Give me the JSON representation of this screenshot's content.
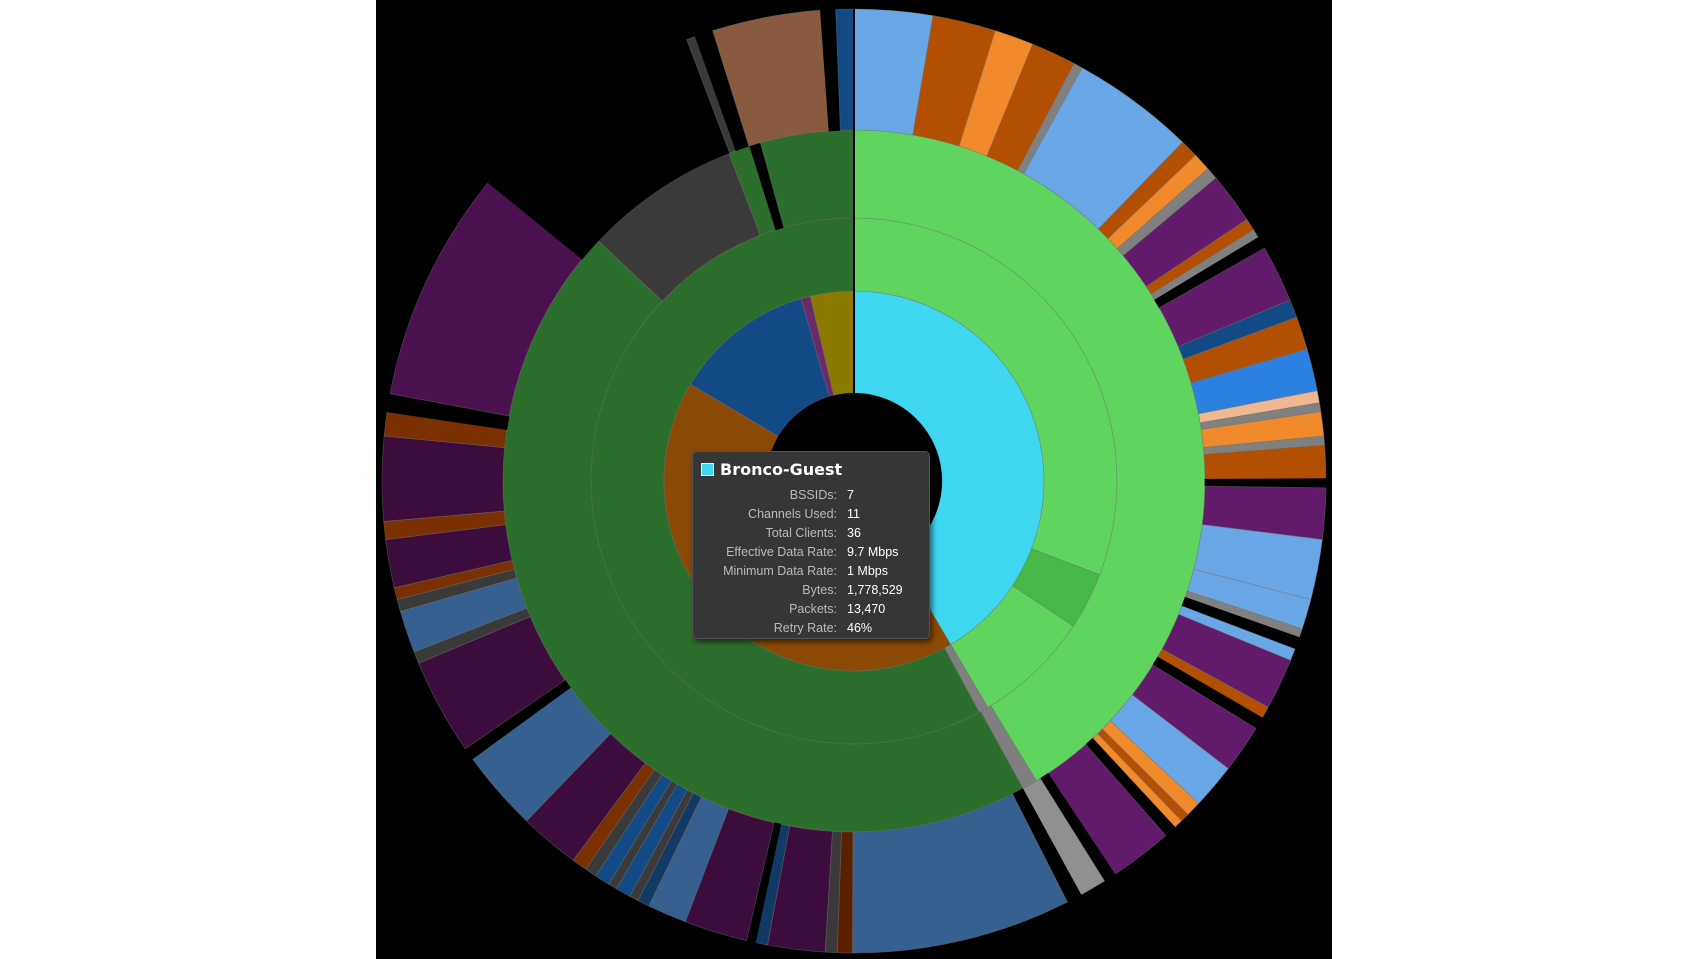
{
  "chart_data": {
    "type": "sunburst",
    "center_color": "#000000",
    "rings": [
      {
        "level": 1,
        "segments": [
          {
            "value": 41.5,
            "color": "#3fd7f0"
          },
          {
            "value": 42.0,
            "color": "#8b4a05"
          },
          {
            "value": 12.0,
            "color": "#124a86"
          },
          {
            "value": 0.8,
            "color": "#6a2a6a"
          },
          {
            "value": 3.7,
            "color": "#8a7a00"
          }
        ]
      },
      {
        "level": 2,
        "segments": [
          {
            "value": 30.8,
            "color": "#5fd45f"
          },
          {
            "value": 3.5,
            "color": "#47b847"
          },
          {
            "value": 7.2,
            "color": "#5fd45f"
          },
          {
            "value": 0.6,
            "color": "#7f7f7f"
          },
          {
            "value": 57.9,
            "color": "#2c6e2c"
          }
        ]
      },
      {
        "level": 3,
        "segments": [
          {
            "value": 41.3,
            "color": "#5fd45f"
          },
          {
            "value": 0.7,
            "color": "#7f7f7f"
          },
          {
            "value": 45.0,
            "color": "#2c6e2c"
          },
          {
            "value": 7.2,
            "color": "#3a3a3a"
          },
          {
            "value": 1.0,
            "color": "#2c6e2c"
          },
          {
            "value": 0.5,
            "color": "#000000"
          },
          {
            "value": 4.3,
            "color": "#2c6e2c"
          }
        ]
      },
      {
        "level": 4,
        "segments": [
          {
            "value": 2.6,
            "color": "#6aa7e6"
          },
          {
            "value": 2.1,
            "color": "#b34f00"
          },
          {
            "value": 1.3,
            "color": "#f08a2a"
          },
          {
            "value": 1.5,
            "color": "#b34f00"
          },
          {
            "value": 0.3,
            "color": "#808080"
          },
          {
            "value": 4.1,
            "color": "#6aa7e6"
          },
          {
            "value": 0.6,
            "color": "#b34f00"
          },
          {
            "value": 0.6,
            "color": "#f08a2a"
          },
          {
            "value": 0.4,
            "color": "#808080"
          },
          {
            "value": 1.7,
            "color": "#621a6a"
          },
          {
            "value": 0.4,
            "color": "#b34f00"
          },
          {
            "value": 0.3,
            "color": "#808080"
          },
          {
            "value": 0.4,
            "color": "#000000"
          },
          {
            "value": 1.9,
            "color": "#621a6a"
          },
          {
            "value": 0.6,
            "color": "#124a86"
          },
          {
            "value": 1.1,
            "color": "#b34f00"
          },
          {
            "value": 1.4,
            "color": "#2b80e0"
          },
          {
            "value": 0.4,
            "color": "#f0b890"
          },
          {
            "value": 0.3,
            "color": "#808080"
          },
          {
            "value": 0.8,
            "color": "#f08a2a"
          },
          {
            "value": 0.3,
            "color": "#808080"
          },
          {
            "value": 1.1,
            "color": "#b34f00"
          },
          {
            "value": 0.3,
            "color": "#000000"
          },
          {
            "value": 1.7,
            "color": "#621a6a"
          },
          {
            "value": 2.0,
            "color": "#6aa7e6"
          },
          {
            "value": 1.0,
            "color": "#6aa7e6"
          },
          {
            "value": 0.3,
            "color": "#808080"
          },
          {
            "value": 0.4,
            "color": "#000000"
          },
          {
            "value": 0.4,
            "color": "#6aa7e6"
          },
          {
            "value": 1.7,
            "color": "#621a6a"
          },
          {
            "value": 0.4,
            "color": "#b34f00"
          },
          {
            "value": 0.4,
            "color": "#000000"
          },
          {
            "value": 1.6,
            "color": "#621a6a"
          },
          {
            "value": 1.5,
            "color": "#6aa7e6"
          },
          {
            "value": 0.5,
            "color": "#f08a2a"
          },
          {
            "value": 0.3,
            "color": "#b34f00"
          },
          {
            "value": 0.3,
            "color": "#f08a2a"
          },
          {
            "value": 0.4,
            "color": "#000000"
          },
          {
            "value": 2.1,
            "color": "#621a6a"
          },
          {
            "value": 0.4,
            "color": "#000000"
          },
          {
            "value": 0.9,
            "color": "#909090"
          },
          {
            "value": 0.5,
            "color": "#000000"
          },
          {
            "value": 7.3,
            "color": "#35608f"
          },
          {
            "value": 0.5,
            "color": "#5a2000"
          },
          {
            "value": 0.4,
            "color": "#3a3a3a"
          },
          {
            "value": 1.9,
            "color": "#3c0c3c"
          },
          {
            "value": 0.4,
            "color": "#123a66"
          },
          {
            "value": 0.3,
            "color": "#000000"
          },
          {
            "value": 2.1,
            "color": "#3c0c3c"
          },
          {
            "value": 1.3,
            "color": "#35608f"
          },
          {
            "value": 0.4,
            "color": "#123a66"
          },
          {
            "value": 0.3,
            "color": "#3a3a3a"
          },
          {
            "value": 0.5,
            "color": "#124a86"
          },
          {
            "value": 0.3,
            "color": "#3a3a3a"
          },
          {
            "value": 0.5,
            "color": "#124a86"
          },
          {
            "value": 0.4,
            "color": "#3a3a3a"
          },
          {
            "value": 0.5,
            "color": "#7a3000"
          },
          {
            "value": 2.0,
            "color": "#3c0c3c"
          },
          {
            "value": 2.7,
            "color": "#35608f"
          },
          {
            "value": 0.4,
            "color": "#000000"
          },
          {
            "value": 3.2,
            "color": "#3c0c3c"
          },
          {
            "value": 0.4,
            "color": "#3a3a3a"
          },
          {
            "value": 1.4,
            "color": "#35608f"
          },
          {
            "value": 0.4,
            "color": "#3a3a3a"
          },
          {
            "value": 0.4,
            "color": "#7a3000"
          },
          {
            "value": 1.6,
            "color": "#3c0c3c"
          },
          {
            "value": 0.6,
            "color": "#7a3000"
          },
          {
            "value": 2.8,
            "color": "#3c0c3c"
          },
          {
            "value": 0.8,
            "color": "#7a3000"
          },
          {
            "value": 0.6,
            "color": "#000000"
          },
          {
            "value": 7.7,
            "color": "#4a1050"
          },
          {
            "value": 0.3,
            "color": "#000000"
          },
          {
            "value": 7.8,
            "color": "#000000"
          },
          {
            "value": 0.3,
            "color": "#3a3a3a"
          },
          {
            "value": 0.6,
            "color": "#000000"
          },
          {
            "value": 3.6,
            "color": "#8a5a3f"
          },
          {
            "value": 0.5,
            "color": "#000000"
          },
          {
            "value": 0.6,
            "color": "#124a86"
          }
        ]
      }
    ]
  },
  "tooltip": {
    "title": "Bronco-Guest",
    "swatch_color": "#3fd7f0",
    "rows": [
      {
        "label": "BSSIDs:",
        "value": "7"
      },
      {
        "label": "Channels Used:",
        "value": "11"
      },
      {
        "label": "Total Clients:",
        "value": "36"
      },
      {
        "label": "Effective Data Rate:",
        "value": "9.7 Mbps"
      },
      {
        "label": "Minimum Data Rate:",
        "value": "1 Mbps"
      },
      {
        "label": "Bytes:",
        "value": "1,778,529"
      },
      {
        "label": "Packets:",
        "value": "13,470"
      },
      {
        "label": "Retry Rate:",
        "value": "46%"
      }
    ]
  }
}
